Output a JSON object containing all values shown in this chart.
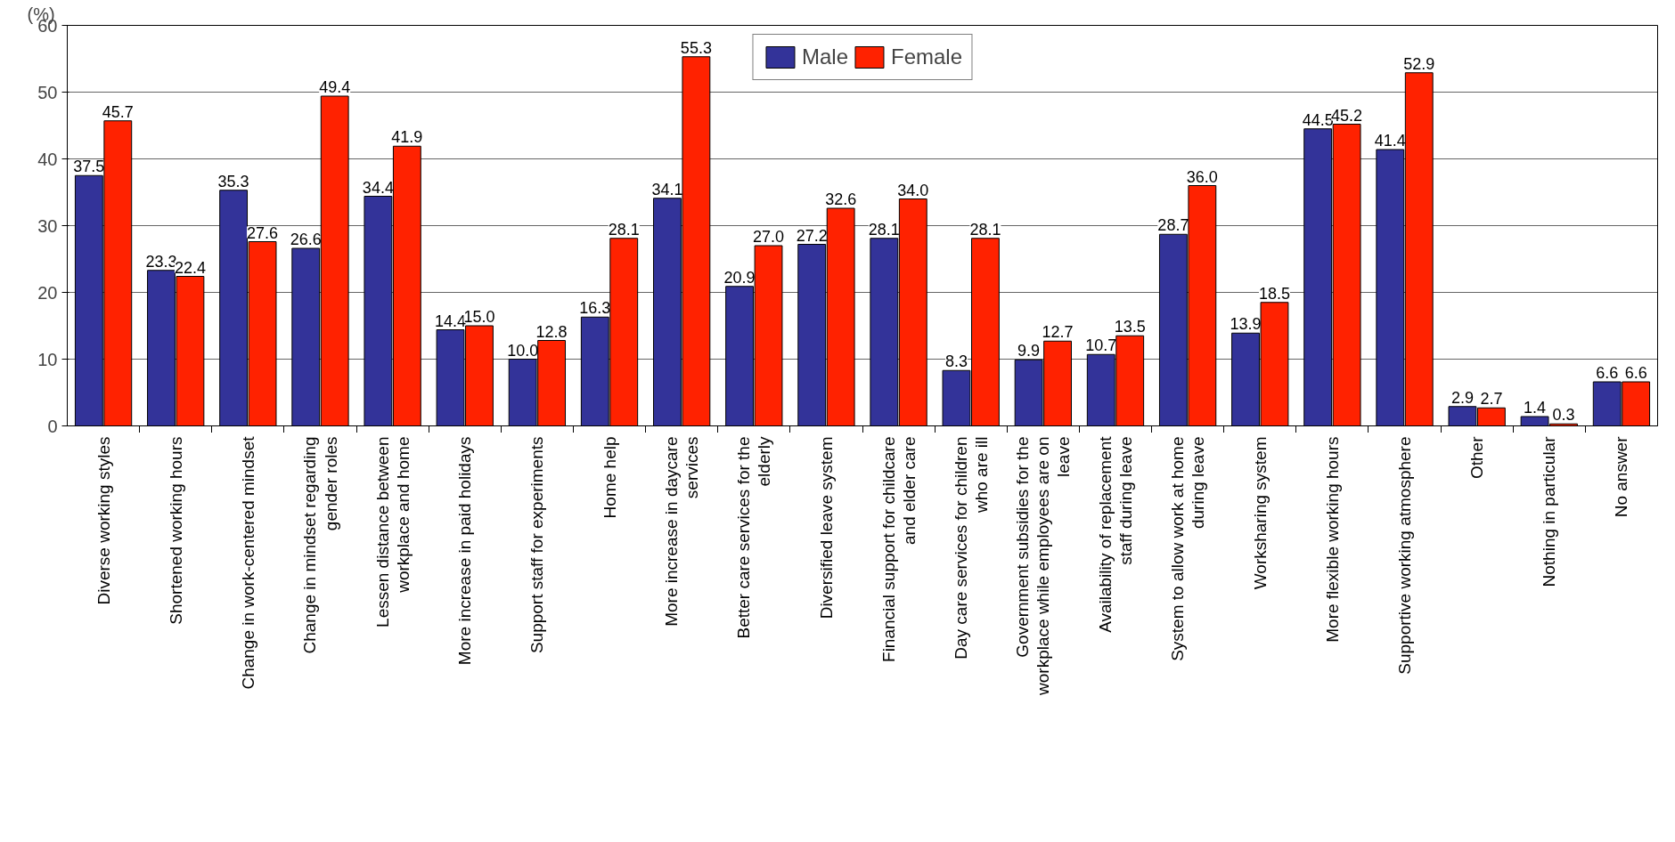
{
  "chart_data": {
    "type": "bar",
    "ylabel": "(%)",
    "categories": [
      "Diverse working styles",
      "Shortened working hours",
      "Change in work-centered mindset",
      "Change in mindset regarding gender roles",
      "Lessen distance between workplace and home",
      "More increase in paid holidays",
      "Support staff for experiments",
      "Home help",
      "More increase in daycare services",
      "Better care services for the elderly",
      "Diversified leave system",
      "Financial support for childcare and elder care",
      "Day care services for children who are ill",
      "Government subsidies for the workplace while employees are on leave",
      "Availability of replacement staff during leave",
      "System to allow work at home during leave",
      "Worksharing system",
      "More flexible working hours",
      "Supportive working atmosphere",
      "Other",
      "Nothing in particular",
      "No answer"
    ],
    "series": [
      {
        "name": "Male",
        "color": "#333399",
        "values": [
          37.5,
          23.3,
          35.3,
          26.6,
          34.4,
          14.4,
          10.0,
          16.3,
          34.1,
          20.9,
          27.2,
          28.1,
          8.3,
          9.9,
          10.7,
          28.7,
          13.9,
          44.5,
          41.4,
          2.9,
          1.4,
          6.6
        ],
        "value_labels": [
          "37.5",
          "23.3",
          "35.3",
          "26.6",
          "34.4",
          "14.4",
          "10.0",
          "16.3",
          "34.1",
          "20.9",
          "27.2",
          "28.1",
          "8.3",
          "9.9",
          "10.7",
          "28.7",
          "13.9",
          "44.5",
          "41.4",
          "2.9",
          "1.4",
          "6.6"
        ]
      },
      {
        "name": "Female",
        "color": "#ff2200",
        "values": [
          45.7,
          22.4,
          27.6,
          49.4,
          41.9,
          15.0,
          12.8,
          28.1,
          55.3,
          27.0,
          32.6,
          34.0,
          28.1,
          12.7,
          13.5,
          36.0,
          18.5,
          45.2,
          52.9,
          2.7,
          0.3,
          6.6
        ],
        "value_labels": [
          "45.7",
          "22.4",
          "27.6",
          "49.4",
          "41.9",
          "15.0",
          "12.8",
          "28.1",
          "55.3",
          "27.0",
          "32.6",
          "34.0",
          "28.1",
          "12.7",
          "13.5",
          "36.0",
          "18.5",
          "45.2",
          "52.9",
          "2.7",
          "0.3",
          "6.6"
        ]
      }
    ],
    "ylim": [
      0,
      60
    ],
    "yticks": [
      0,
      10,
      20,
      30,
      40,
      50,
      60
    ],
    "grid": "y",
    "legend": "top"
  }
}
